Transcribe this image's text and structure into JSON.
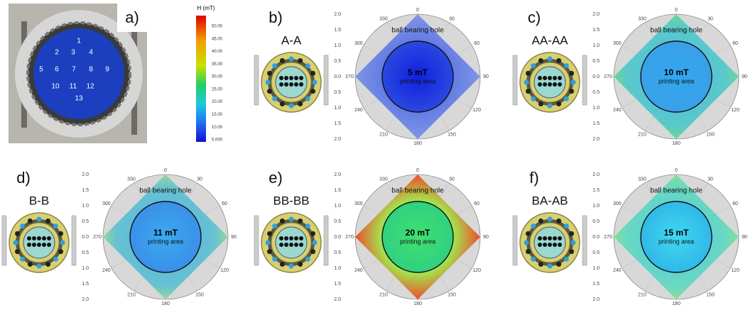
{
  "panel_a": {
    "label": "a)",
    "markers": [
      "1",
      "2",
      "3",
      "4",
      "5",
      "6",
      "7",
      "8",
      "9",
      "10",
      "11",
      "12",
      "13"
    ],
    "colorbar": {
      "title": "H (mT)",
      "ticks": [
        "50.00",
        "45.00",
        "40.00",
        "35.00",
        "30.00",
        "25.00",
        "20.00",
        "15.00",
        "10.00",
        "5.000"
      ]
    }
  },
  "angle_labels": [
    "0",
    "30",
    "60",
    "90",
    "120",
    "150",
    "180",
    "210",
    "240",
    "270",
    "300",
    "330"
  ],
  "radial_labels": [
    "2.0",
    "1.5",
    "1.0",
    "0.5",
    "0.0",
    "0.5",
    "1.0",
    "1.5",
    "2.0"
  ],
  "panels": [
    {
      "label": "b)",
      "name": "A-A",
      "field": "5 mT",
      "area": "printing area",
      "hole": "ball bearing hole"
    },
    {
      "label": "c)",
      "name": "AA-AA",
      "field": "10 mT",
      "area": "printing area",
      "hole": "ball bearing hole"
    },
    {
      "label": "d)",
      "name": "B-B",
      "field": "11 mT",
      "area": "printing area",
      "hole": "ball bearing hole"
    },
    {
      "label": "e)",
      "name": "BB-BB",
      "field": "20 mT",
      "area": "printing area",
      "hole": "ball bearing hole"
    },
    {
      "label": "f)",
      "name": "BA-AB",
      "field": "15 mT",
      "area": "printing area",
      "hole": "ball bearing hole"
    }
  ]
}
